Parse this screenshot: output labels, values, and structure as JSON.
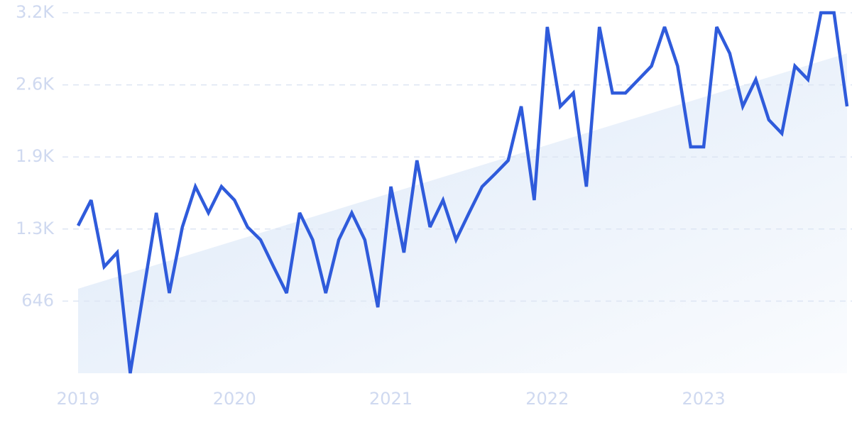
{
  "chart_data": {
    "type": "line",
    "categories": [
      "2019",
      null,
      null,
      null,
      null,
      null,
      null,
      null,
      null,
      null,
      null,
      null,
      "2020",
      null,
      null,
      null,
      null,
      null,
      null,
      null,
      null,
      null,
      null,
      null,
      "2021",
      null,
      null,
      null,
      null,
      null,
      null,
      null,
      null,
      null,
      null,
      null,
      "2022",
      null,
      null,
      null,
      null,
      null,
      null,
      null,
      null,
      null,
      null,
      null,
      "2023",
      null,
      null,
      null,
      null,
      null,
      null,
      null,
      null,
      null,
      null,
      null
    ],
    "values": [
      1322,
      1551,
      954,
      1081,
      0,
      718,
      1437,
      718,
      1310,
      1672,
      1437,
      1672,
      1551,
      1310,
      1195,
      954,
      718,
      1437,
      1195,
      718,
      1195,
      1437,
      1195,
      591,
      1672,
      1081,
      1907,
      1310,
      1551,
      1195,
      1437,
      1672,
      1787,
      1907,
      2391,
      1551,
      3103,
      2391,
      2511,
      1672,
      3103,
      2511,
      2511,
      2632,
      2753,
      3103,
      2753,
      2028,
      2028,
      3103,
      2867,
      2391,
      2632,
      2270,
      2149,
      2753,
      2632,
      3230,
      3230,
      2391
    ],
    "trend": [
      757,
      2867
    ],
    "color": "#2f5bdb",
    "trend_color": "#dce8f8",
    "ylim": [
      0,
      3230
    ],
    "yticks": [
      646,
      {
        "value": 1292,
        "label": "1.3K"
      },
      {
        "value": 1938,
        "label": "1.9K"
      },
      {
        "value": 2584,
        "label": "2.6K"
      },
      {
        "value": 3230,
        "label": "3.2K"
      }
    ],
    "grid": true
  }
}
